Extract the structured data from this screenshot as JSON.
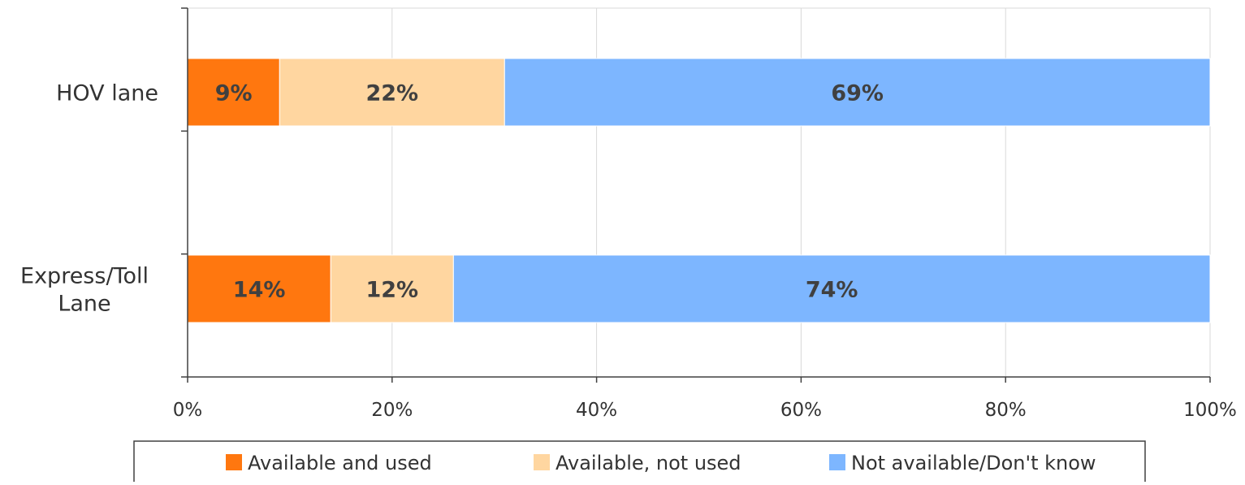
{
  "chart_data": {
    "type": "bar",
    "orientation": "horizontal",
    "stacked": true,
    "categories": [
      "HOV lane",
      "Express/Toll Lane"
    ],
    "series": [
      {
        "name": "Available and used",
        "values": [
          9,
          14
        ],
        "labels": [
          "9%",
          "14%"
        ],
        "color": "#FF770F"
      },
      {
        "name": "Available, not used",
        "values": [
          22,
          12
        ],
        "labels": [
          "22%",
          "12%"
        ],
        "color": "#FFD6A0"
      },
      {
        "name": "Not available/Don't know",
        "values": [
          69,
          74
        ],
        "labels": [
          "69%",
          "74%"
        ],
        "color": "#7DB6FF"
      }
    ],
    "xlim": [
      0,
      100
    ],
    "xticks": [
      0,
      20,
      40,
      60,
      80,
      100
    ],
    "xtick_labels": [
      "0%",
      "20%",
      "40%",
      "60%",
      "80%",
      "100%"
    ],
    "grid": "vertical",
    "legend_placement": "bottom"
  }
}
